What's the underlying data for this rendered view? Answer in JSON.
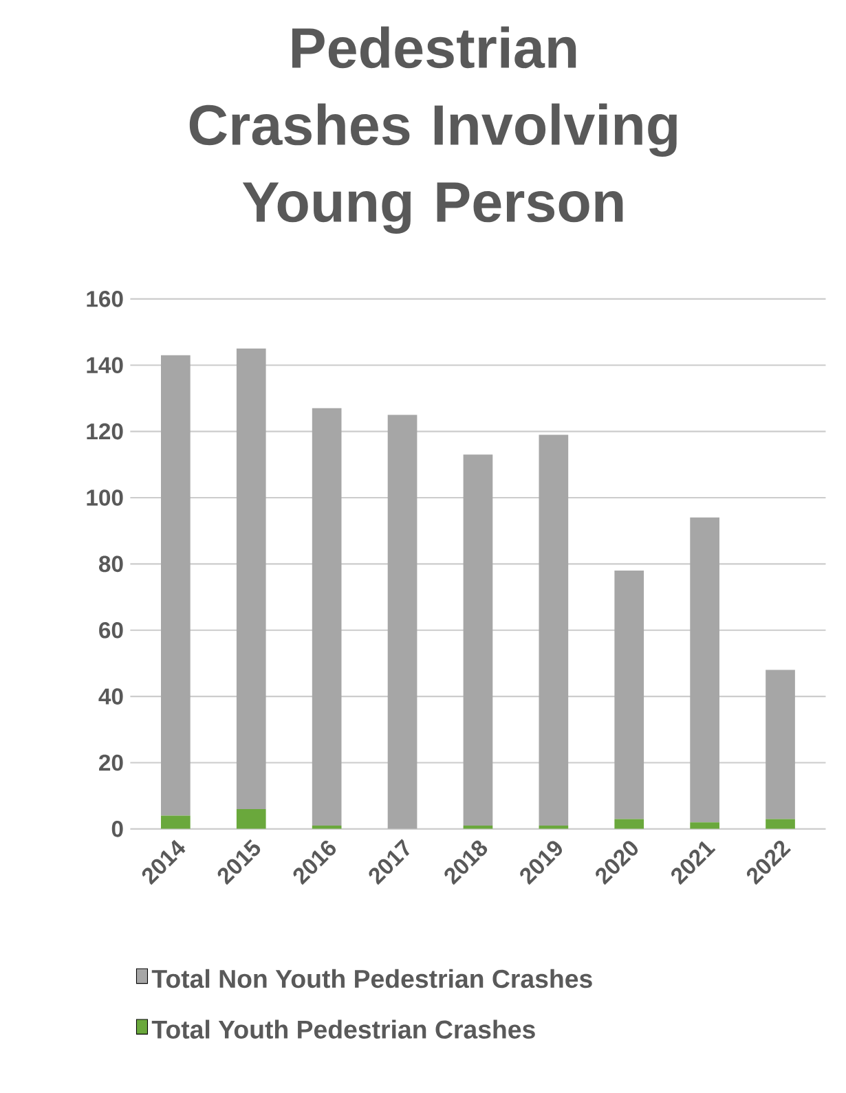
{
  "chart_data": {
    "type": "bar",
    "title": "Pedestrian Crashes Involving Young Person",
    "categories": [
      "2014",
      "2015",
      "2016",
      "2017",
      "2018",
      "2019",
      "2020",
      "2021",
      "2022"
    ],
    "series": [
      {
        "name": "Total Youth Pedestrian Crashes",
        "color": "#6aa83c",
        "values": [
          4,
          6,
          1,
          0,
          1,
          1,
          3,
          2,
          3
        ]
      },
      {
        "name": "Total Non Youth Pedestrian Crashes",
        "color": "#a6a6a6",
        "values": [
          139,
          139,
          126,
          125,
          112,
          118,
          75,
          92,
          45
        ]
      }
    ],
    "stacked": true,
    "ylim": [
      0,
      160
    ],
    "yticks": [
      0,
      20,
      40,
      60,
      80,
      100,
      120,
      140,
      160
    ],
    "grid": "y",
    "legend": "bottom"
  }
}
